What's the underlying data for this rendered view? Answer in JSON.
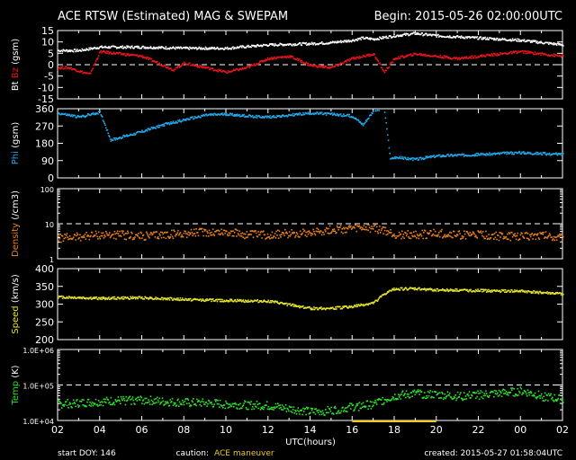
{
  "header": {
    "title": "ACE RTSW (Estimated) MAG & SWEPAM",
    "begin": "Begin: 2015-05-26 02:00:00UTC"
  },
  "footer": {
    "start_doy": "start DOY: 146",
    "caution_label": "caution:",
    "caution_text": "ACE maneuver",
    "created": "created: 2015-05-27 01:58:04UTC"
  },
  "colors": {
    "bt": "#ffffff",
    "bz": "#e8141c",
    "phi": "#22aaee",
    "density": "#e8801e",
    "speed": "#e6e62a",
    "temp": "#2ee22e",
    "caution": "#f0c828"
  },
  "chart_data": [
    {
      "type": "scatter",
      "panel": "bt_bz",
      "ylabel_parts": [
        {
          "text": "Bt",
          "color_key": "bt"
        },
        {
          "text": "Bz",
          "color_key": "bz"
        },
        {
          "text": "(gsm)",
          "color_key": "bt"
        }
      ],
      "ylim": [
        -15,
        15
      ],
      "yticks": [
        -15,
        -10,
        -5,
        0,
        5,
        10,
        15
      ],
      "ytick_labels": [
        "-15",
        "-10",
        "-5",
        "0",
        "5",
        "10",
        "15"
      ],
      "dashed_lines": [
        0
      ],
      "series": [
        {
          "color_key": "bt",
          "x": [
            0,
            1,
            2,
            3,
            4,
            6,
            8,
            10,
            12,
            13,
            14,
            14.5,
            15,
            16,
            17,
            18,
            20,
            22,
            24
          ],
          "values": [
            6.5,
            6.5,
            8,
            8,
            8,
            7.5,
            7.5,
            9,
            9.5,
            10,
            11,
            12,
            11.5,
            13,
            14,
            13,
            12,
            11,
            9
          ]
        },
        {
          "color_key": "bz",
          "x": [
            0,
            0.5,
            1.5,
            2,
            3,
            4,
            5,
            5.5,
            6,
            7,
            8,
            9,
            10,
            11,
            12,
            13,
            14,
            15,
            15.5,
            16,
            17,
            18,
            19,
            20,
            21,
            22,
            23,
            24
          ],
          "values": [
            -1,
            -1,
            -4,
            6,
            5,
            4,
            0,
            -2,
            1,
            -1,
            -3,
            -1,
            3,
            4,
            0,
            -1,
            3,
            5,
            -3,
            3,
            5,
            4,
            3,
            4,
            5,
            6,
            5,
            4
          ]
        }
      ]
    },
    {
      "type": "scatter",
      "panel": "phi",
      "ylabel_parts": [
        {
          "text": "Phi",
          "color_key": "phi"
        },
        {
          "text": "(gsm)",
          "color_key": "bt"
        }
      ],
      "ylim": [
        0,
        360
      ],
      "yticks": [
        0,
        90,
        180,
        270,
        360
      ],
      "ytick_labels": [
        "0",
        "90",
        "180",
        "270",
        "360"
      ],
      "series": [
        {
          "color_key": "phi",
          "x": [
            0,
            1,
            2,
            2.5,
            3,
            3.5,
            4,
            5,
            6,
            7,
            8,
            9,
            10,
            11,
            12,
            13,
            14,
            14.5,
            15,
            15.5,
            15.8,
            16,
            17,
            18,
            19,
            20,
            21,
            22,
            23,
            24
          ],
          "values": [
            340,
            320,
            345,
            200,
            215,
            230,
            245,
            280,
            305,
            330,
            335,
            325,
            320,
            330,
            340,
            335,
            325,
            280,
            355,
            360,
            100,
            110,
            100,
            118,
            122,
            125,
            130,
            135,
            130,
            125
          ]
        }
      ]
    },
    {
      "type": "scatter",
      "panel": "density",
      "scale": "log",
      "ylabel_parts": [
        {
          "text": "Density",
          "color_key": "density"
        },
        {
          "text": "(/cm3)",
          "color_key": "bt"
        }
      ],
      "ylim": [
        1,
        100
      ],
      "yticks": [
        1,
        10,
        100
      ],
      "ytick_labels": [
        "1",
        "10",
        "100"
      ],
      "dashed_lines": [
        10
      ],
      "series": [
        {
          "color_key": "density",
          "x": [
            0,
            1,
            2,
            3,
            4,
            5,
            6,
            7,
            8,
            9,
            10,
            11,
            12,
            13,
            14,
            15,
            16,
            17,
            18,
            19,
            20,
            21,
            22,
            23,
            24
          ],
          "values": [
            4,
            4.5,
            5,
            5,
            4.5,
            5,
            5.5,
            6,
            6,
            5,
            5,
            5.5,
            6,
            7,
            7.5,
            8,
            5,
            5,
            5.5,
            5,
            5,
            4.5,
            4.5,
            5,
            4
          ]
        }
      ]
    },
    {
      "type": "scatter",
      "panel": "speed",
      "ylabel_parts": [
        {
          "text": "Speed",
          "color_key": "speed"
        },
        {
          "text": "(km/s)",
          "color_key": "bt"
        }
      ],
      "ylim": [
        200,
        400
      ],
      "yticks": [
        200,
        250,
        300,
        350,
        400
      ],
      "ytick_labels": [
        "200",
        "250",
        "300",
        "350",
        "400"
      ],
      "series": [
        {
          "color_key": "speed",
          "x": [
            0,
            2,
            4,
            6,
            8,
            10,
            11,
            12,
            13,
            14,
            15,
            15.5,
            16,
            17,
            18,
            20,
            22,
            24
          ],
          "values": [
            322,
            318,
            320,
            315,
            312,
            310,
            300,
            290,
            290,
            295,
            305,
            330,
            345,
            345,
            342,
            340,
            338,
            330
          ]
        }
      ]
    },
    {
      "type": "scatter",
      "panel": "temp",
      "scale": "log",
      "ylabel_parts": [
        {
          "text": "Temp",
          "color_key": "temp"
        },
        {
          "text": "(K)",
          "color_key": "bt"
        }
      ],
      "ylim": [
        10000,
        1000000
      ],
      "yticks": [
        10000,
        100000,
        1000000
      ],
      "ytick_labels": [
        "1.0E+04",
        "1.0E+05",
        "1.0E+06"
      ],
      "dashed_lines": [
        100000
      ],
      "series": [
        {
          "color_key": "temp",
          "x": [
            0,
            1,
            2,
            3,
            4,
            5,
            6,
            7,
            8,
            9,
            10,
            11,
            12,
            13,
            14,
            15,
            16,
            17,
            18,
            19,
            20,
            21,
            22,
            23,
            24
          ],
          "values": [
            30000,
            32000,
            35000,
            38000,
            40000,
            35000,
            33000,
            32000,
            30000,
            28000,
            27000,
            22000,
            18000,
            20000,
            25000,
            30000,
            50000,
            60000,
            55000,
            50000,
            55000,
            60000,
            70000,
            50000,
            40000
          ]
        }
      ]
    }
  ],
  "x_axis": {
    "label": "UTC(hours)",
    "ticks": [
      0,
      2,
      4,
      6,
      8,
      10,
      12,
      14,
      16,
      18,
      20,
      22,
      24
    ],
    "tick_labels": [
      "02",
      "04",
      "06",
      "08",
      "10",
      "12",
      "14",
      "16",
      "18",
      "20",
      "22",
      "00",
      "02"
    ],
    "highlight_range": [
      14,
      18
    ]
  }
}
